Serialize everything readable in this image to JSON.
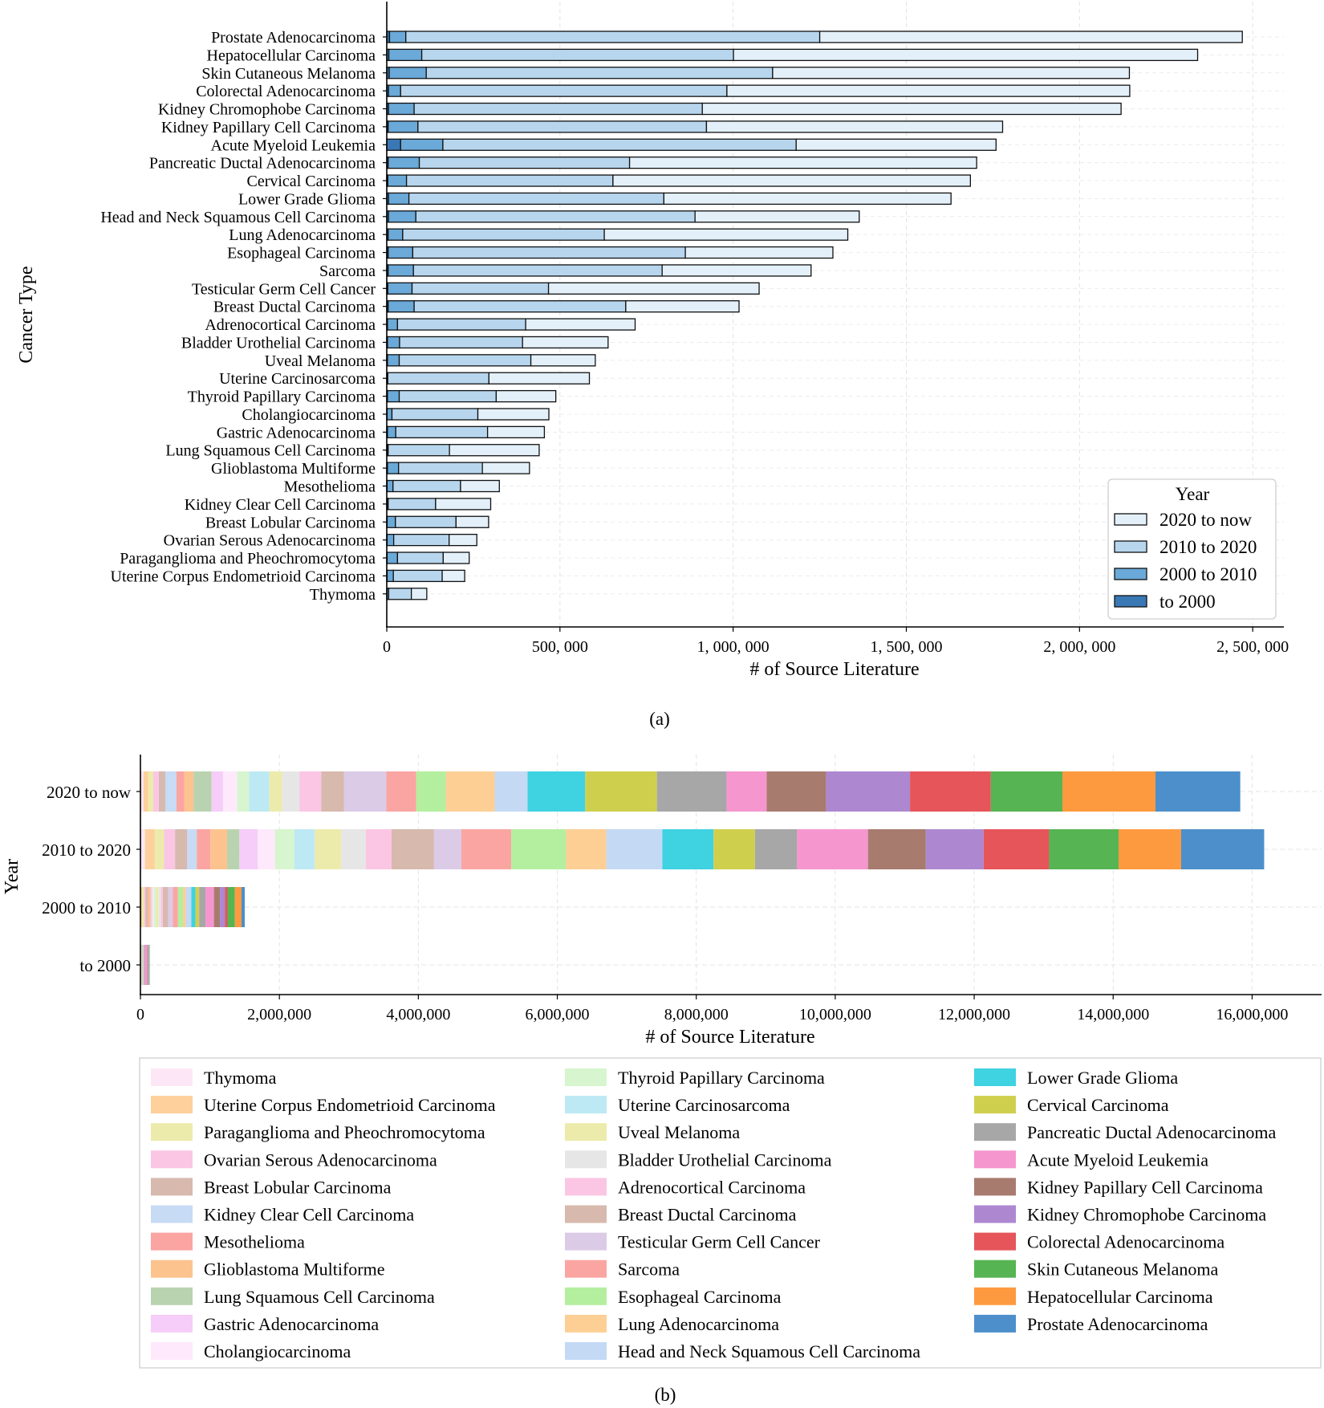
{
  "chart_data": [
    {
      "type": "bar",
      "orientation": "horizontal",
      "stacked": true,
      "panel_label": "(a)",
      "title": "",
      "xlabel": "# of Source Literature",
      "ylabel": "Cancer Type",
      "xlim": [
        0,
        2590000
      ],
      "x_ticks": [
        0,
        500000,
        1000000,
        1500000,
        2000000,
        2500000
      ],
      "x_tick_labels": [
        "0",
        "500, 000",
        "1, 000, 000",
        "1, 500, 000",
        "2, 000, 000",
        "2, 500, 000"
      ],
      "grid": true,
      "legend": {
        "title": "Year",
        "position": "lower-right"
      },
      "series_order": [
        "to 2000",
        "2000 to 2010",
        "2010 to 2020",
        "2020 to now"
      ],
      "colors": {
        "to 2000": "#3a78b5",
        "2000 to 2010": "#6aa9d8",
        "2010 to 2020": "#b7d6ee",
        "2020 to now": "#e3f0fa"
      },
      "legend_entries": [
        "2020 to now",
        "2010 to 2020",
        "2000 to 2010",
        "to 2000"
      ],
      "categories": [
        "Prostate Adenocarcinoma",
        "Hepatocellular Carcinoma",
        "Skin Cutaneous Melanoma",
        "Colorectal Adenocarcinoma",
        "Kidney Chromophobe Carcinoma",
        "Kidney Papillary Cell Carcinoma",
        "Acute Myeloid Leukemia",
        "Pancreatic Ductal Adenocarcinoma",
        "Cervical Carcinoma",
        "Lower Grade Glioma",
        "Head and Neck Squamous Cell Carcinoma",
        "Lung Adenocarcinoma",
        "Esophageal Carcinoma",
        "Sarcoma",
        "Testicular Germ Cell Cancer",
        "Breast Ductal Carcinoma",
        "Adrenocortical Carcinoma",
        "Bladder Urothelial Carcinoma",
        "Uveal Melanoma",
        "Uterine Carcinosarcoma",
        "Thyroid Papillary Carcinoma",
        "Cholangiocarcinoma",
        "Gastric Adenocarcinoma",
        "Lung Squamous Cell Carcinoma",
        "Glioblastoma Multiforme",
        "Mesothelioma",
        "Kidney Clear Cell Carcinoma",
        "Breast Lobular Carcinoma",
        "Ovarian Serous Adenocarcinoma",
        "Paraganglioma and Pheochromocytoma",
        "Uterine Corpus Endometrioid Carcinoma",
        "Thymoma"
      ],
      "series": [
        {
          "name": "to 2000",
          "values": [
            8000,
            6000,
            7000,
            5000,
            5000,
            4000,
            40000,
            4000,
            3000,
            5000,
            5000,
            4000,
            4000,
            4000,
            3000,
            4000,
            2000,
            2000,
            2000,
            1000,
            2000,
            1000,
            2000,
            1000,
            2000,
            1000,
            1000,
            1000,
            1000,
            1000,
            1000,
            500
          ]
        },
        {
          "name": "2000 to 2010",
          "values": [
            47000,
            95000,
            107000,
            35000,
            74000,
            86000,
            122000,
            90000,
            54000,
            59000,
            79000,
            42000,
            71000,
            73000,
            70000,
            75000,
            29000,
            35000,
            34000,
            2000,
            34000,
            14000,
            24000,
            3000,
            32000,
            17000,
            3000,
            24000,
            19000,
            30000,
            18000,
            5000
          ]
        },
        {
          "name": "2010 to 2020",
          "values": [
            1195000,
            900000,
            1000000,
            942000,
            832000,
            833000,
            1020000,
            607000,
            596000,
            736000,
            806000,
            582000,
            787000,
            718000,
            394000,
            611000,
            370000,
            355000,
            380000,
            292000,
            280000,
            248000,
            265000,
            177000,
            242000,
            195000,
            137000,
            175000,
            160000,
            132000,
            141000,
            65500
          ]
        },
        {
          "name": "2020 to now",
          "values": [
            1220000,
            1340000,
            1030000,
            1163000,
            1209000,
            855000,
            577000,
            1002000,
            1032000,
            829000,
            474000,
            703000,
            426000,
            430000,
            608000,
            327000,
            316000,
            247000,
            186000,
            290000,
            172000,
            205000,
            164000,
            259000,
            136000,
            112000,
            159000,
            94000,
            80000,
            75000,
            65000,
            44500
          ]
        }
      ]
    },
    {
      "type": "bar",
      "orientation": "horizontal",
      "stacked": true,
      "panel_label": "(b)",
      "title": "",
      "xlabel": "# of Source Literature",
      "ylabel": "Year",
      "xlim": [
        0,
        17000000
      ],
      "x_ticks": [
        0,
        2000000,
        4000000,
        6000000,
        8000000,
        10000000,
        12000000,
        14000000,
        16000000
      ],
      "x_tick_labels": [
        "0",
        "2,000,000",
        "4,000,000",
        "6,000,000",
        "8,000,000",
        "10,000,000",
        "12,000,000",
        "14,000,000",
        "16,000,000"
      ],
      "grid": true,
      "legend": {
        "position": "bottom",
        "columns": 3
      },
      "categories": [
        "2020 to now",
        "2010 to 2020",
        "2000 to 2010",
        "to 2000"
      ],
      "series": [
        {
          "name": "Thymoma",
          "color": "#fde7f6",
          "values": [
            44500,
            65500,
            5000,
            500
          ]
        },
        {
          "name": "Uterine Corpus Endometrioid Carcinoma",
          "color": "#fdd09c",
          "values": [
            65000,
            141000,
            18000,
            1000
          ]
        },
        {
          "name": "Paraganglioma and Pheochromocytoma",
          "color": "#ecebab",
          "values": [
            75000,
            132000,
            30000,
            1000
          ]
        },
        {
          "name": "Ovarian Serous Adenocarcinoma",
          "color": "#fbc6e4",
          "values": [
            80000,
            160000,
            19000,
            1000
          ]
        },
        {
          "name": "Breast Lobular Carcinoma",
          "color": "#d7b9ae",
          "values": [
            94000,
            175000,
            24000,
            1000
          ]
        },
        {
          "name": "Kidney Clear Cell Carcinoma",
          "color": "#c7dbf5",
          "values": [
            159000,
            137000,
            3000,
            1000
          ]
        },
        {
          "name": "Mesothelioma",
          "color": "#faa5a2",
          "values": [
            112000,
            195000,
            17000,
            1000
          ]
        },
        {
          "name": "Glioblastoma Multiforme",
          "color": "#fcc38f",
          "values": [
            136000,
            242000,
            32000,
            2000
          ]
        },
        {
          "name": "Lung Squamous Cell Carcinoma",
          "color": "#b9d3b0",
          "values": [
            259000,
            177000,
            3000,
            1000
          ]
        },
        {
          "name": "Gastric Adenocarcinoma",
          "color": "#f5cdf8",
          "values": [
            164000,
            265000,
            24000,
            2000
          ]
        },
        {
          "name": "Cholangiocarcinoma",
          "color": "#fde9fb",
          "values": [
            205000,
            248000,
            14000,
            1000
          ]
        },
        {
          "name": "Thyroid Papillary Carcinoma",
          "color": "#d7f5ce",
          "values": [
            172000,
            280000,
            34000,
            2000
          ]
        },
        {
          "name": "Uterine Carcinosarcoma",
          "color": "#bde9f4",
          "values": [
            290000,
            292000,
            2000,
            1000
          ]
        },
        {
          "name": "Uveal Melanoma",
          "color": "#ecebab",
          "values": [
            186000,
            380000,
            34000,
            2000
          ]
        },
        {
          "name": "Bladder Urothelial Carcinoma",
          "color": "#e6e6e6",
          "values": [
            247000,
            355000,
            35000,
            2000
          ]
        },
        {
          "name": "Adrenocortical Carcinoma",
          "color": "#fbc6e4",
          "values": [
            316000,
            370000,
            29000,
            2000
          ]
        },
        {
          "name": "Breast Ductal Carcinoma",
          "color": "#d7b9ae",
          "values": [
            327000,
            611000,
            75000,
            4000
          ]
        },
        {
          "name": "Testicular Germ Cell Cancer",
          "color": "#dbcbe6",
          "values": [
            608000,
            394000,
            70000,
            3000
          ]
        },
        {
          "name": "Sarcoma",
          "color": "#faa5a2",
          "values": [
            430000,
            718000,
            73000,
            4000
          ]
        },
        {
          "name": "Esophageal Carcinoma",
          "color": "#b3ef9f",
          "values": [
            426000,
            787000,
            71000,
            4000
          ]
        },
        {
          "name": "Lung Adenocarcinoma",
          "color": "#fdcf95",
          "values": [
            703000,
            582000,
            42000,
            4000
          ]
        },
        {
          "name": "Head and Neck Squamous Cell Carcinoma",
          "color": "#c4d9f4",
          "values": [
            474000,
            806000,
            79000,
            5000
          ]
        },
        {
          "name": "Lower Grade Glioma",
          "color": "#3fd2e1",
          "values": [
            829000,
            736000,
            59000,
            5000
          ]
        },
        {
          "name": "Cervical Carcinoma",
          "color": "#cfcf4e",
          "values": [
            1032000,
            596000,
            54000,
            3000
          ]
        },
        {
          "name": "Pancreatic Ductal Adenocarcinoma",
          "color": "#a7a7a7",
          "values": [
            1002000,
            607000,
            90000,
            4000
          ]
        },
        {
          "name": "Acute Myeloid Leukemia",
          "color": "#f596cf",
          "values": [
            577000,
            1020000,
            122000,
            40000
          ]
        },
        {
          "name": "Kidney Papillary Cell Carcinoma",
          "color": "#a87b6f",
          "values": [
            855000,
            833000,
            86000,
            4000
          ]
        },
        {
          "name": "Kidney Chromophobe Carcinoma",
          "color": "#ad88d0",
          "values": [
            1209000,
            832000,
            74000,
            5000
          ]
        },
        {
          "name": "Colorectal Adenocarcinoma",
          "color": "#e5555a",
          "values": [
            1163000,
            942000,
            35000,
            5000
          ]
        },
        {
          "name": "Skin Cutaneous Melanoma",
          "color": "#56b452",
          "values": [
            1030000,
            1000000,
            107000,
            7000
          ]
        },
        {
          "name": "Hepatocellular Carcinoma",
          "color": "#fd9a3f",
          "values": [
            1340000,
            900000,
            95000,
            6000
          ]
        },
        {
          "name": "Prostate Adenocarcinoma",
          "color": "#4c8fcb",
          "values": [
            1220000,
            1195000,
            47000,
            8000
          ]
        }
      ]
    }
  ]
}
